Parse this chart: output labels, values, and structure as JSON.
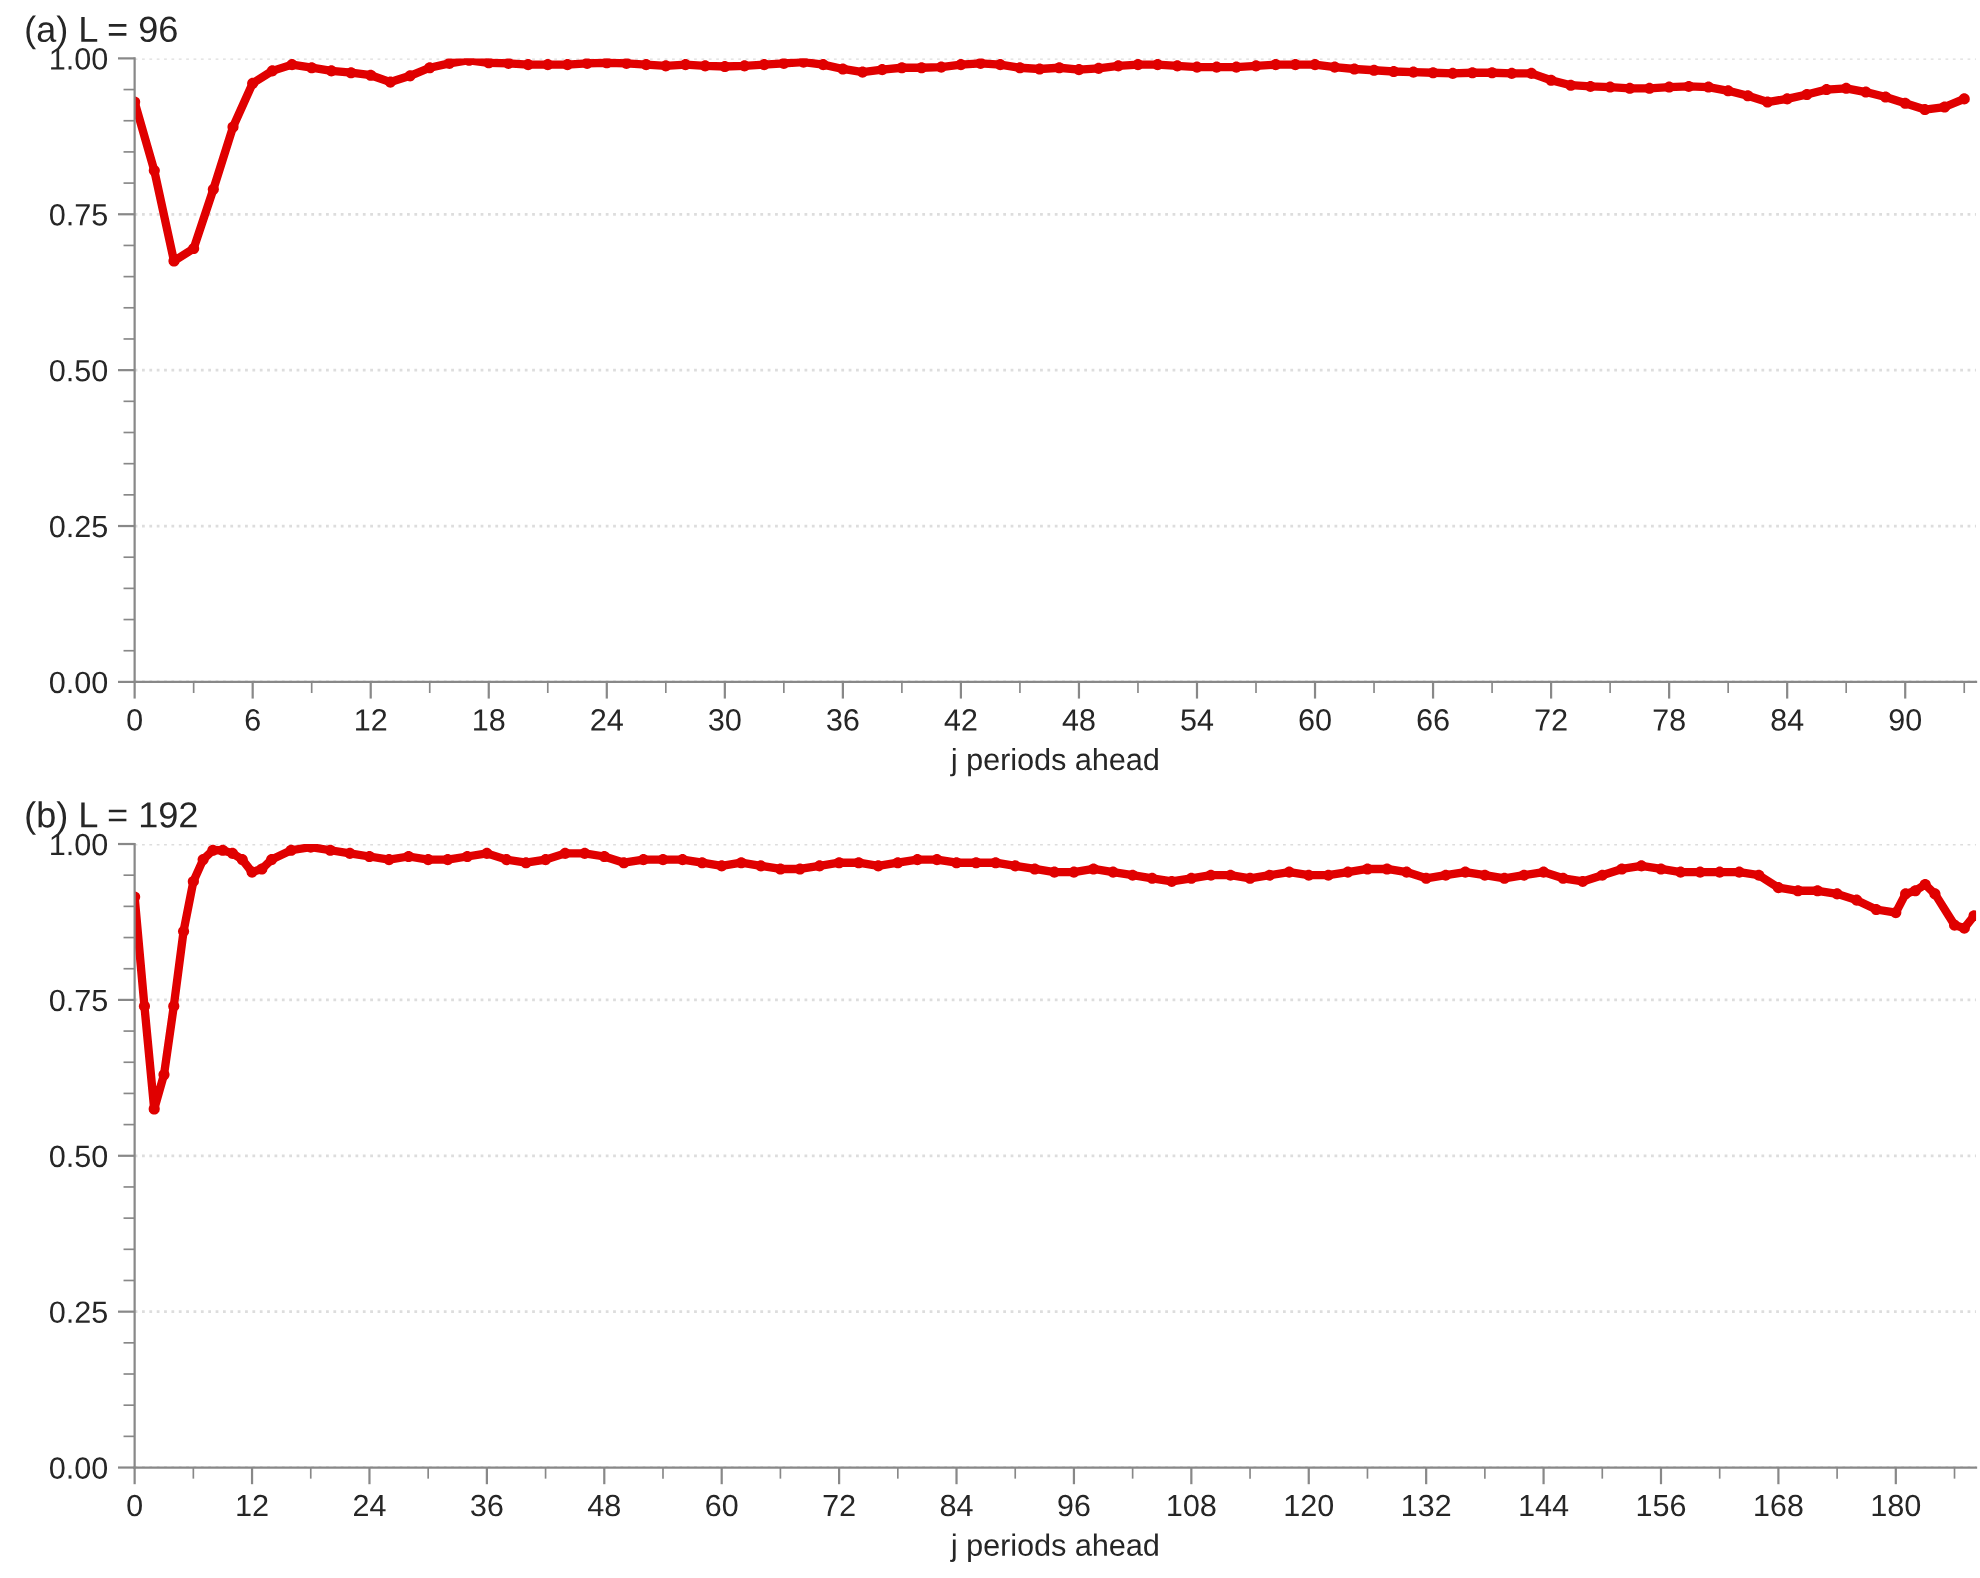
{
  "chart_data": [
    {
      "type": "line",
      "title": "(a) L = 96",
      "xlabel": "j periods ahead",
      "xlim": [
        0,
        93.6
      ],
      "xticks": [
        0,
        6,
        12,
        18,
        24,
        30,
        36,
        42,
        48,
        54,
        60,
        66,
        72,
        78,
        84,
        90
      ],
      "ylim": [
        0,
        1
      ],
      "yticks": [
        {
          "value": 0,
          "label": "0.00"
        },
        {
          "value": 0.25,
          "label": "0.25"
        },
        {
          "value": 0.5,
          "label": "0.50"
        },
        {
          "value": 0.75,
          "label": "0.75"
        },
        {
          "value": 1,
          "label": "1.00"
        }
      ],
      "grid": "y",
      "marker": "circle",
      "line_style": "solid",
      "series": [
        {
          "color": "#e00000",
          "x": [
            0,
            1,
            2,
            3,
            4,
            5,
            6,
            7,
            8,
            9,
            10,
            11,
            12,
            13,
            14,
            15,
            16,
            17,
            18,
            19,
            20,
            21,
            22,
            23,
            24,
            25,
            26,
            27,
            28,
            29,
            30,
            31,
            32,
            33,
            34,
            35,
            36,
            37,
            38,
            39,
            40,
            41,
            42,
            43,
            44,
            45,
            46,
            47,
            48,
            49,
            50,
            51,
            52,
            53,
            54,
            55,
            56,
            57,
            58,
            59,
            60,
            61,
            62,
            63,
            64,
            65,
            66,
            67,
            68,
            69,
            70,
            71,
            72,
            73,
            74,
            75,
            76,
            77,
            78,
            79,
            80,
            81,
            82,
            83,
            84,
            85,
            86,
            87,
            88,
            89,
            90,
            91,
            92,
            93
          ],
          "values": [
            0.93,
            0.82,
            0.675,
            0.695,
            0.79,
            0.89,
            0.96,
            0.98,
            0.99,
            0.985,
            0.98,
            0.977,
            0.973,
            0.962,
            0.972,
            0.985,
            0.992,
            0.997,
            0.993,
            0.992,
            0.99,
            0.99,
            0.99,
            0.992,
            0.993,
            0.992,
            0.99,
            0.988,
            0.99,
            0.988,
            0.987,
            0.988,
            0.99,
            0.992,
            0.994,
            0.99,
            0.983,
            0.978,
            0.982,
            0.985,
            0.985,
            0.986,
            0.99,
            0.992,
            0.99,
            0.985,
            0.983,
            0.985,
            0.982,
            0.984,
            0.988,
            0.99,
            0.99,
            0.988,
            0.986,
            0.986,
            0.986,
            0.988,
            0.99,
            0.99,
            0.99,
            0.986,
            0.983,
            0.981,
            0.979,
            0.978,
            0.977,
            0.976,
            0.977,
            0.977,
            0.976,
            0.976,
            0.965,
            0.957,
            0.955,
            0.954,
            0.952,
            0.952,
            0.954,
            0.955,
            0.954,
            0.948,
            0.94,
            0.93,
            0.935,
            0.942,
            0.95,
            0.952,
            0.946,
            0.938,
            0.928,
            0.918,
            0.922,
            0.935
          ]
        }
      ]
    },
    {
      "type": "line",
      "title": "(b) L = 192",
      "xlabel": "j periods ahead",
      "xlim": [
        0,
        188.2
      ],
      "xticks": [
        0,
        12,
        24,
        36,
        48,
        60,
        72,
        84,
        96,
        108,
        120,
        132,
        144,
        156,
        168,
        180
      ],
      "ylim": [
        0,
        1
      ],
      "yticks": [
        {
          "value": 0,
          "label": "0.00"
        },
        {
          "value": 0.25,
          "label": "0.25"
        },
        {
          "value": 0.5,
          "label": "0.50"
        },
        {
          "value": 0.75,
          "label": "0.75"
        },
        {
          "value": 1,
          "label": "1.00"
        }
      ],
      "grid": "y",
      "marker": "circle",
      "line_style": "solid",
      "series": [
        {
          "color": "#e00000",
          "x": [
            0,
            1,
            2,
            3,
            4,
            5,
            6,
            7,
            8,
            9,
            10,
            11,
            12,
            13,
            14,
            16,
            18,
            20,
            22,
            24,
            26,
            28,
            30,
            32,
            34,
            36,
            38,
            40,
            42,
            44,
            46,
            48,
            50,
            52,
            54,
            56,
            58,
            60,
            62,
            64,
            66,
            68,
            70,
            72,
            74,
            76,
            78,
            80,
            82,
            84,
            86,
            88,
            90,
            92,
            94,
            96,
            98,
            100,
            102,
            104,
            106,
            108,
            110,
            112,
            114,
            116,
            118,
            120,
            122,
            124,
            126,
            128,
            130,
            132,
            134,
            136,
            138,
            140,
            142,
            144,
            146,
            148,
            150,
            152,
            154,
            156,
            158,
            160,
            162,
            164,
            166,
            168,
            170,
            172,
            174,
            176,
            178,
            180,
            181,
            182,
            183,
            184,
            186,
            187,
            188
          ],
          "values": [
            0.915,
            0.74,
            0.575,
            0.63,
            0.74,
            0.86,
            0.94,
            0.975,
            0.99,
            0.99,
            0.985,
            0.975,
            0.955,
            0.96,
            0.975,
            0.99,
            0.995,
            0.99,
            0.985,
            0.98,
            0.975,
            0.98,
            0.975,
            0.975,
            0.98,
            0.985,
            0.975,
            0.97,
            0.975,
            0.985,
            0.985,
            0.98,
            0.97,
            0.975,
            0.975,
            0.975,
            0.97,
            0.965,
            0.97,
            0.965,
            0.96,
            0.96,
            0.965,
            0.97,
            0.97,
            0.965,
            0.97,
            0.975,
            0.975,
            0.97,
            0.97,
            0.97,
            0.965,
            0.96,
            0.955,
            0.955,
            0.96,
            0.955,
            0.95,
            0.945,
            0.94,
            0.945,
            0.95,
            0.95,
            0.945,
            0.95,
            0.955,
            0.95,
            0.95,
            0.955,
            0.96,
            0.96,
            0.955,
            0.945,
            0.95,
            0.955,
            0.95,
            0.945,
            0.95,
            0.955,
            0.945,
            0.94,
            0.95,
            0.96,
            0.965,
            0.96,
            0.955,
            0.955,
            0.955,
            0.955,
            0.95,
            0.93,
            0.925,
            0.925,
            0.92,
            0.91,
            0.895,
            0.89,
            0.92,
            0.925,
            0.935,
            0.92,
            0.87,
            0.865,
            0.885
          ]
        }
      ]
    }
  ]
}
